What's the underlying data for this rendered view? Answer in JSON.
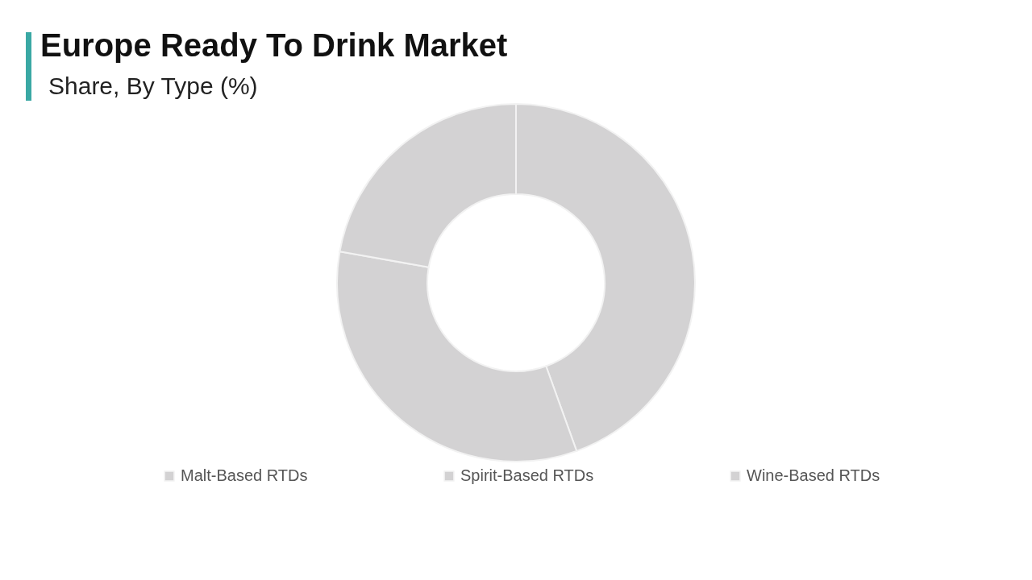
{
  "chart_data": {
    "type": "donut",
    "title": "Europe Ready To Drink Market",
    "subtitle": "Share, By Type (%)",
    "categories": [
      "Malt-Based RTDs",
      "Spirit-Based RTDs",
      "Wine-Based RTDs"
    ],
    "values": [
      44.5,
      33.3,
      22.2
    ],
    "colors": [
      "#d3d2d3",
      "#d3d2d3",
      "#d3d2d3"
    ],
    "legend": "bottom"
  }
}
